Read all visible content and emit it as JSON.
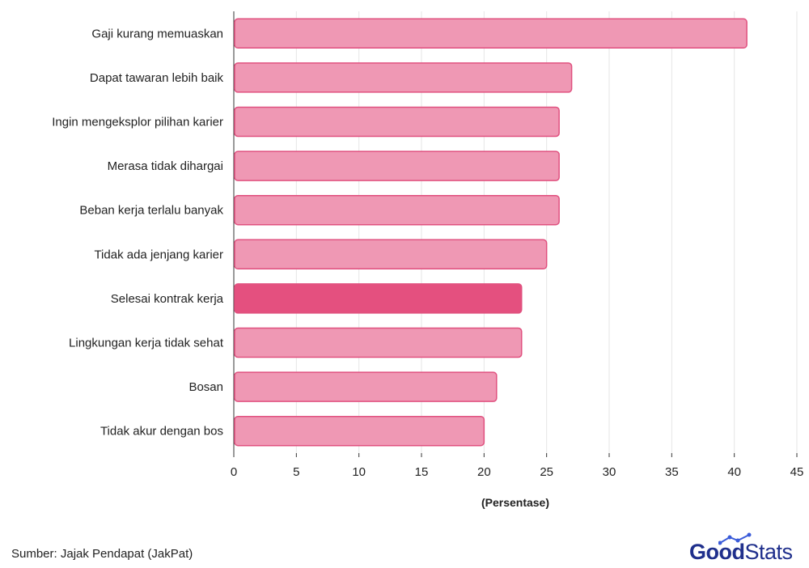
{
  "chart_data": {
    "type": "bar",
    "orientation": "horizontal",
    "categories": [
      "Gaji kurang memuaskan",
      "Dapat tawaran lebih baik",
      "Ingin mengeksplor pilihan karier",
      "Merasa tidak dihargai",
      "Beban kerja terlalu banyak",
      "Tidak ada jenjang karier",
      "Selesai kontrak kerja",
      "Lingkungan kerja tidak sehat",
      "Bosan",
      "Tidak akur dengan bos"
    ],
    "values": [
      41,
      27,
      26,
      26,
      26,
      25,
      23,
      23,
      21,
      20
    ],
    "highlight_index": 6,
    "xlabel": "(Persentase)",
    "ylabel": "",
    "xlim": [
      0,
      45
    ],
    "xticks": [
      0,
      5,
      10,
      15,
      20,
      25,
      30,
      35,
      40,
      45
    ],
    "grid": "vertical",
    "colors": {
      "bar": "#ef98b4",
      "bar_border": "#e0517f",
      "bar_highlight": "#e4507f",
      "grid": "#e6e6e6",
      "axis": "#333333",
      "text": "#222222"
    }
  },
  "source": "Sumber: Jajak Pendapat (JakPat)",
  "logo": {
    "part1": "Good",
    "part2": "Stats",
    "color": "#1f2f8c",
    "accent": "#3a5bd9"
  }
}
